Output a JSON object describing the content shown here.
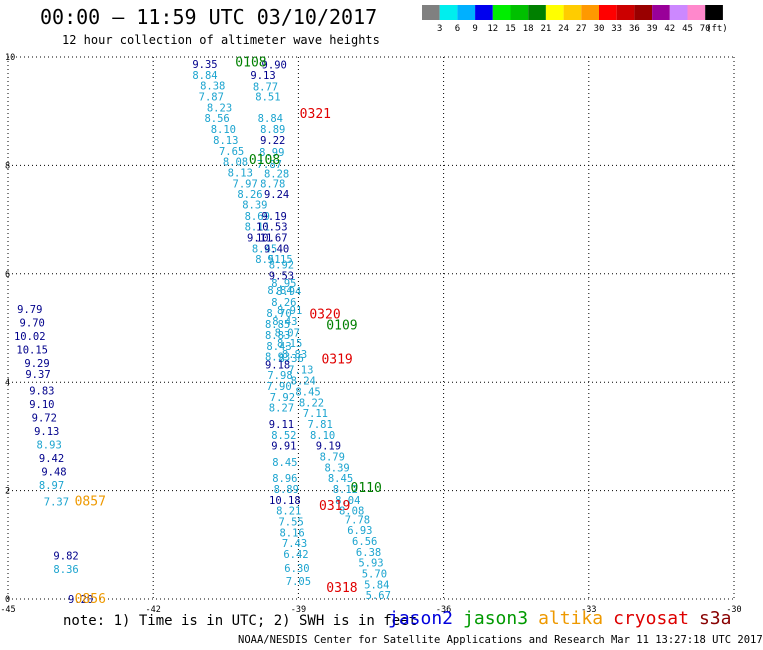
{
  "title": "00:00 – 11:59 UTC 03/10/2017",
  "subtitle": "12 hour collection of altimeter wave heights",
  "colorbar": {
    "ticks": [
      "3",
      "6",
      "9",
      "12",
      "15",
      "18",
      "21",
      "24",
      "27",
      "30",
      "33",
      "36",
      "39",
      "42",
      "45",
      "70"
    ],
    "unit": "(ft)",
    "colors": [
      "#808080",
      "#00eeee",
      "#00b0ff",
      "#0000ee",
      "#00ee00",
      "#00c000",
      "#008000",
      "#ffff00",
      "#ffcc00",
      "#ff9900",
      "#ff0000",
      "#cc0000",
      "#990000",
      "#990099",
      "#cc88ff",
      "#ff88cc",
      "#000000"
    ]
  },
  "chart_data": {
    "type": "scatter",
    "xlim": [
      -45,
      -30
    ],
    "ylim": [
      0,
      10
    ],
    "x_ticks": [
      "-45",
      "-42",
      "-39",
      "-36",
      "-33",
      "-30"
    ],
    "y_ticks": [
      "0",
      "2",
      "4",
      "6",
      "8",
      "10"
    ],
    "grid": true,
    "label_colors": {
      "navy": "#00008b",
      "cyan": "#1ca4cf",
      "green": "#008000",
      "red": "#e00000",
      "orange": "#ee9900"
    },
    "values": [
      {
        "x": -40.93,
        "y": 9.87,
        "t": "9.35",
        "c": "navy"
      },
      {
        "x": -39.5,
        "y": 9.86,
        "t": "9.90",
        "c": "navy"
      },
      {
        "x": -39.73,
        "y": 9.67,
        "t": "9.13",
        "c": "navy"
      },
      {
        "x": -40.93,
        "y": 9.67,
        "t": "8.84",
        "c": "cyan"
      },
      {
        "x": -40.77,
        "y": 9.47,
        "t": "8.38",
        "c": "cyan"
      },
      {
        "x": -39.68,
        "y": 9.46,
        "t": "8.77",
        "c": "cyan"
      },
      {
        "x": -40.8,
        "y": 9.27,
        "t": "7.87",
        "c": "cyan"
      },
      {
        "x": -39.63,
        "y": 9.27,
        "t": "8.51",
        "c": "cyan"
      },
      {
        "x": -40.63,
        "y": 9.07,
        "t": "8.23",
        "c": "cyan"
      },
      {
        "x": -40.68,
        "y": 8.87,
        "t": "8.56",
        "c": "cyan"
      },
      {
        "x": -39.58,
        "y": 8.87,
        "t": "8.84",
        "c": "cyan"
      },
      {
        "x": -40.55,
        "y": 8.67,
        "t": "8.10",
        "c": "cyan"
      },
      {
        "x": -39.53,
        "y": 8.67,
        "t": "8.89",
        "c": "cyan"
      },
      {
        "x": -40.5,
        "y": 8.47,
        "t": "8.13",
        "c": "cyan"
      },
      {
        "x": -39.53,
        "y": 8.47,
        "t": "9.22",
        "c": "navy"
      },
      {
        "x": -40.38,
        "y": 8.27,
        "t": "7.65",
        "c": "cyan"
      },
      {
        "x": -39.55,
        "y": 8.25,
        "t": "8.99",
        "c": "cyan"
      },
      {
        "x": -40.3,
        "y": 8.07,
        "t": "8.08",
        "c": "cyan"
      },
      {
        "x": -39.6,
        "y": 8.03,
        "t": "7.87",
        "c": "cyan"
      },
      {
        "x": -40.2,
        "y": 7.87,
        "t": "8.13",
        "c": "cyan"
      },
      {
        "x": -39.45,
        "y": 7.85,
        "t": "8.28",
        "c": "cyan"
      },
      {
        "x": -40.1,
        "y": 7.67,
        "t": "7.97",
        "c": "cyan"
      },
      {
        "x": -39.53,
        "y": 7.67,
        "t": "8.78",
        "c": "cyan"
      },
      {
        "x": -40.0,
        "y": 7.47,
        "t": "8.26",
        "c": "cyan"
      },
      {
        "x": -39.45,
        "y": 7.47,
        "t": "9.24",
        "c": "navy"
      },
      {
        "x": -39.9,
        "y": 7.28,
        "t": "8.39",
        "c": "cyan"
      },
      {
        "x": -39.85,
        "y": 7.07,
        "t": "8.69",
        "c": "cyan"
      },
      {
        "x": -39.5,
        "y": 7.07,
        "t": "9.19",
        "c": "navy"
      },
      {
        "x": -39.85,
        "y": 6.87,
        "t": "8.11",
        "c": "cyan"
      },
      {
        "x": -39.55,
        "y": 6.87,
        "t": "10.53",
        "c": "navy"
      },
      {
        "x": -39.8,
        "y": 6.67,
        "t": "9.11",
        "c": "navy"
      },
      {
        "x": -39.55,
        "y": 6.67,
        "t": "10.67",
        "c": "navy"
      },
      {
        "x": -39.7,
        "y": 6.47,
        "t": "8.45",
        "c": "cyan"
      },
      {
        "x": -39.45,
        "y": 6.47,
        "t": "9.40",
        "c": "navy"
      },
      {
        "x": -39.63,
        "y": 6.27,
        "t": "8.51",
        "c": "cyan"
      },
      {
        "x": -39.38,
        "y": 6.27,
        "t": "9.15",
        "c": "cyan"
      },
      {
        "x": -39.35,
        "y": 6.17,
        "t": "8.92",
        "c": "cyan"
      },
      {
        "x": -39.35,
        "y": 5.97,
        "t": "9.53",
        "c": "navy"
      },
      {
        "x": -39.3,
        "y": 5.83,
        "t": "8.95",
        "c": "cyan"
      },
      {
        "x": -39.38,
        "y": 5.7,
        "t": "8.84",
        "c": "cyan"
      },
      {
        "x": -39.2,
        "y": 5.68,
        "t": "8.94",
        "c": "cyan"
      },
      {
        "x": -39.3,
        "y": 5.48,
        "t": "8.26",
        "c": "cyan"
      },
      {
        "x": -39.18,
        "y": 5.33,
        "t": "8.91",
        "c": "cyan"
      },
      {
        "x": -39.4,
        "y": 5.28,
        "t": "8.70",
        "c": "cyan"
      },
      {
        "x": -39.28,
        "y": 5.13,
        "t": "8.43",
        "c": "cyan"
      },
      {
        "x": -39.43,
        "y": 5.07,
        "t": "8.85",
        "c": "cyan"
      },
      {
        "x": -39.23,
        "y": 4.92,
        "t": "8.07",
        "c": "cyan"
      },
      {
        "x": -39.43,
        "y": 4.87,
        "t": "8.83",
        "c": "cyan"
      },
      {
        "x": -39.18,
        "y": 4.72,
        "t": "8.15",
        "c": "cyan"
      },
      {
        "x": -39.4,
        "y": 4.67,
        "t": "8.43",
        "c": "cyan"
      },
      {
        "x": -39.08,
        "y": 4.52,
        "t": "8.83",
        "c": "cyan"
      },
      {
        "x": -39.43,
        "y": 4.47,
        "t": "8.93",
        "c": "cyan"
      },
      {
        "x": -39.15,
        "y": 4.45,
        "t": "8.36",
        "c": "cyan"
      },
      {
        "x": -39.43,
        "y": 4.33,
        "t": "9.18",
        "c": "navy"
      },
      {
        "x": -38.95,
        "y": 4.23,
        "t": "7.13",
        "c": "cyan"
      },
      {
        "x": -39.38,
        "y": 4.13,
        "t": "7.98",
        "c": "cyan"
      },
      {
        "x": -38.9,
        "y": 4.03,
        "t": "8.24",
        "c": "cyan"
      },
      {
        "x": -39.4,
        "y": 3.93,
        "t": "7.90",
        "c": "cyan"
      },
      {
        "x": -38.8,
        "y": 3.83,
        "t": "8.45",
        "c": "cyan"
      },
      {
        "x": -39.33,
        "y": 3.73,
        "t": "7.92",
        "c": "cyan"
      },
      {
        "x": -38.73,
        "y": 3.63,
        "t": "8.22",
        "c": "cyan"
      },
      {
        "x": -39.35,
        "y": 3.53,
        "t": "8.27",
        "c": "cyan"
      },
      {
        "x": -38.65,
        "y": 3.43,
        "t": "7.11",
        "c": "cyan"
      },
      {
        "x": -39.35,
        "y": 3.23,
        "t": "9.11",
        "c": "navy"
      },
      {
        "x": -38.55,
        "y": 3.23,
        "t": "7.81",
        "c": "cyan"
      },
      {
        "x": -39.3,
        "y": 3.03,
        "t": "8.52",
        "c": "cyan"
      },
      {
        "x": -38.5,
        "y": 3.03,
        "t": "8.10",
        "c": "cyan"
      },
      {
        "x": -39.3,
        "y": 2.83,
        "t": "9.91",
        "c": "navy"
      },
      {
        "x": -38.38,
        "y": 2.83,
        "t": "9.19",
        "c": "navy"
      },
      {
        "x": -38.3,
        "y": 2.63,
        "t": "8.79",
        "c": "cyan"
      },
      {
        "x": -39.28,
        "y": 2.53,
        "t": "8.45",
        "c": "cyan"
      },
      {
        "x": -38.2,
        "y": 2.43,
        "t": "8.39",
        "c": "cyan"
      },
      {
        "x": -39.28,
        "y": 2.23,
        "t": "8.96",
        "c": "cyan"
      },
      {
        "x": -38.13,
        "y": 2.23,
        "t": "8.45",
        "c": "cyan"
      },
      {
        "x": -39.25,
        "y": 2.03,
        "t": "8.89",
        "c": "cyan"
      },
      {
        "x": -38.03,
        "y": 2.03,
        "t": "8.12",
        "c": "cyan"
      },
      {
        "x": -39.28,
        "y": 1.83,
        "t": "10.18",
        "c": "navy"
      },
      {
        "x": -37.98,
        "y": 1.83,
        "t": "8.04",
        "c": "cyan"
      },
      {
        "x": -39.2,
        "y": 1.63,
        "t": "8.21",
        "c": "cyan"
      },
      {
        "x": -37.9,
        "y": 1.63,
        "t": "8.08",
        "c": "cyan"
      },
      {
        "x": -37.78,
        "y": 1.47,
        "t": "7.78",
        "c": "cyan"
      },
      {
        "x": -39.15,
        "y": 1.43,
        "t": "7.55",
        "c": "cyan"
      },
      {
        "x": -37.73,
        "y": 1.27,
        "t": "6.93",
        "c": "cyan"
      },
      {
        "x": -39.13,
        "y": 1.23,
        "t": "8.16",
        "c": "cyan"
      },
      {
        "x": -37.63,
        "y": 1.07,
        "t": "6.56",
        "c": "cyan"
      },
      {
        "x": -39.08,
        "y": 1.03,
        "t": "7.43",
        "c": "cyan"
      },
      {
        "x": -37.55,
        "y": 0.87,
        "t": "6.38",
        "c": "cyan"
      },
      {
        "x": -39.05,
        "y": 0.83,
        "t": "6.42",
        "c": "cyan"
      },
      {
        "x": -37.5,
        "y": 0.67,
        "t": "5.93",
        "c": "cyan"
      },
      {
        "x": -39.03,
        "y": 0.57,
        "t": "6.30",
        "c": "cyan"
      },
      {
        "x": -37.43,
        "y": 0.47,
        "t": "5.70",
        "c": "cyan"
      },
      {
        "x": -39.0,
        "y": 0.33,
        "t": "7.05",
        "c": "cyan"
      },
      {
        "x": -37.38,
        "y": 0.27,
        "t": "5.84",
        "c": "cyan"
      },
      {
        "x": -37.35,
        "y": 0.07,
        "t": "5.67",
        "c": "cyan"
      },
      {
        "x": -44.55,
        "y": 5.35,
        "t": "9.79",
        "c": "navy"
      },
      {
        "x": -44.5,
        "y": 5.1,
        "t": "9.70",
        "c": "navy"
      },
      {
        "x": -44.55,
        "y": 4.85,
        "t": "10.02",
        "c": "navy"
      },
      {
        "x": -44.5,
        "y": 4.6,
        "t": "10.15",
        "c": "navy"
      },
      {
        "x": -44.4,
        "y": 4.35,
        "t": "9.29",
        "c": "navy"
      },
      {
        "x": -44.38,
        "y": 4.15,
        "t": "9.37",
        "c": "navy"
      },
      {
        "x": -44.3,
        "y": 3.85,
        "t": "9.83",
        "c": "navy"
      },
      {
        "x": -44.3,
        "y": 3.6,
        "t": "9.10",
        "c": "navy"
      },
      {
        "x": -44.25,
        "y": 3.35,
        "t": "9.72",
        "c": "navy"
      },
      {
        "x": -44.2,
        "y": 3.1,
        "t": "9.13",
        "c": "navy"
      },
      {
        "x": -44.15,
        "y": 2.85,
        "t": "8.93",
        "c": "cyan"
      },
      {
        "x": -44.1,
        "y": 2.6,
        "t": "9.42",
        "c": "navy"
      },
      {
        "x": -44.05,
        "y": 2.35,
        "t": "9.48",
        "c": "navy"
      },
      {
        "x": -44.1,
        "y": 2.1,
        "t": "8.97",
        "c": "cyan"
      },
      {
        "x": -44.0,
        "y": 1.8,
        "t": "7.37",
        "c": "cyan"
      },
      {
        "x": -43.8,
        "y": 0.8,
        "t": "9.82",
        "c": "navy"
      },
      {
        "x": -43.8,
        "y": 0.55,
        "t": "8.36",
        "c": "cyan"
      },
      {
        "x": -43.5,
        "y": 0.0,
        "t": "9.20",
        "c": "navy"
      },
      {
        "x": -43.3,
        "y": 1.8,
        "t": "0857",
        "c": "orange"
      },
      {
        "x": -43.3,
        "y": 0.0,
        "t": "0856",
        "c": "orange"
      },
      {
        "x": -39.98,
        "y": 9.9,
        "t": "0108",
        "c": "green"
      },
      {
        "x": -39.7,
        "y": 8.1,
        "t": "0108",
        "c": "green"
      },
      {
        "x": -38.1,
        "y": 5.05,
        "t": "0109",
        "c": "green"
      },
      {
        "x": -37.6,
        "y": 2.05,
        "t": "0110",
        "c": "green"
      },
      {
        "x": -38.65,
        "y": 8.95,
        "t": "0321",
        "c": "red"
      },
      {
        "x": -38.45,
        "y": 5.25,
        "t": "0320",
        "c": "red"
      },
      {
        "x": -38.2,
        "y": 4.42,
        "t": "0319",
        "c": "red"
      },
      {
        "x": -38.25,
        "y": 1.72,
        "t": "0319",
        "c": "red"
      },
      {
        "x": -38.1,
        "y": 0.2,
        "t": "0318",
        "c": "red"
      }
    ]
  },
  "note": "note: 1) Time is in UTC; 2) SWH is in feet",
  "legend": [
    {
      "label": "jason2",
      "color": "#0000dd"
    },
    {
      "label": "jason3",
      "color": "#009900"
    },
    {
      "label": "altika",
      "color": "#ee9900"
    },
    {
      "label": "cryosat",
      "color": "#dd0000"
    },
    {
      "label": "s3a",
      "color": "#880000"
    }
  ],
  "credit": "NOAA/NESDIS Center for Satellite Applications and Research   Mar 11 13:27:18 UTC 2017"
}
